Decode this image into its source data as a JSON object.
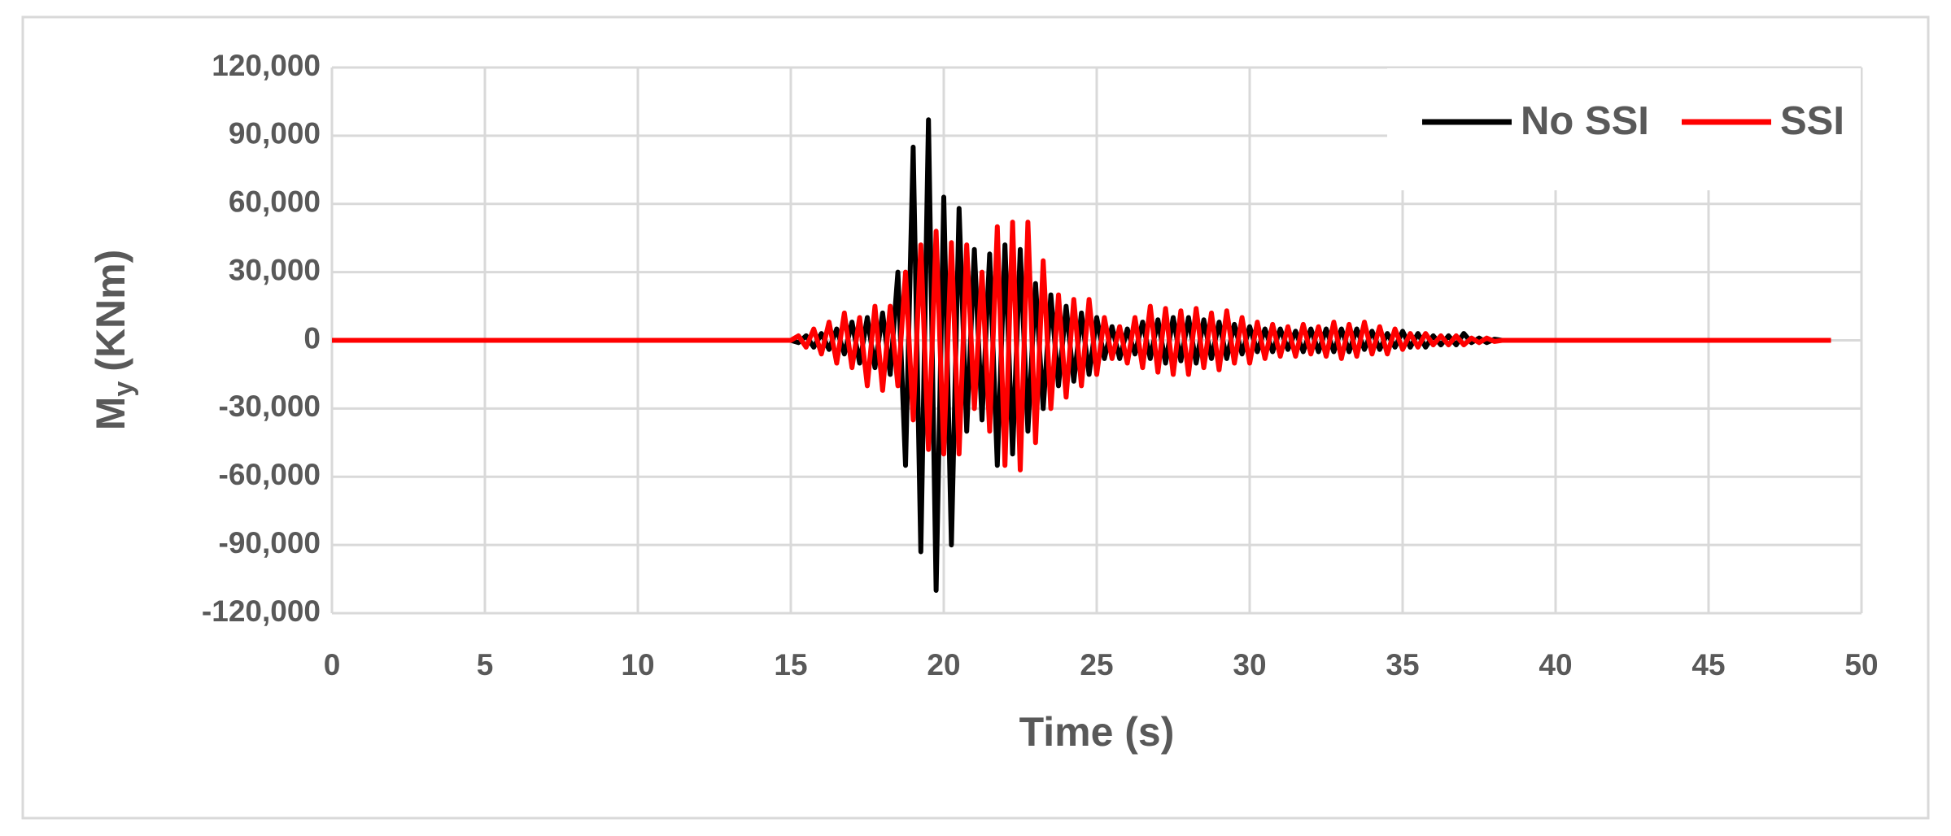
{
  "chart_data": {
    "type": "line",
    "x_label": "Time (s)",
    "y_label_parts": [
      "M",
      "y",
      "(KNm)"
    ],
    "x": [
      0,
      15,
      15.25,
      15.5,
      15.75,
      16,
      16.25,
      16.5,
      16.75,
      17,
      17.25,
      17.5,
      17.75,
      18,
      18.25,
      18.5,
      18.75,
      19,
      19.25,
      19.5,
      19.75,
      20,
      20.25,
      20.5,
      20.75,
      21,
      21.25,
      21.5,
      21.75,
      22,
      22.25,
      22.5,
      22.75,
      23,
      23.25,
      23.5,
      23.75,
      24,
      24.25,
      24.5,
      24.75,
      25,
      25.25,
      25.5,
      25.75,
      26,
      26.25,
      26.5,
      26.75,
      27,
      27.25,
      27.5,
      27.75,
      28,
      28.25,
      28.5,
      28.75,
      29,
      29.25,
      29.5,
      29.75,
      30,
      30.25,
      30.5,
      30.75,
      31,
      31.25,
      31.5,
      31.75,
      32,
      32.25,
      32.5,
      32.75,
      33,
      33.25,
      33.5,
      33.75,
      34,
      34.25,
      34.5,
      34.75,
      35,
      35.25,
      35.5,
      35.75,
      36,
      36.25,
      36.5,
      36.75,
      37,
      37.25,
      37.5,
      37.75,
      38,
      38.25,
      38.5,
      49
    ],
    "series": [
      {
        "name": "No SSI",
        "color": "#000000",
        "values": [
          0,
          0,
          -1000,
          2000,
          -3000,
          3000,
          -4000,
          5000,
          -6000,
          8000,
          -10000,
          10000,
          -12000,
          12000,
          -15000,
          30000,
          -55000,
          85000,
          -93000,
          97000,
          -110000,
          63000,
          -90000,
          58000,
          -40000,
          40000,
          -35000,
          38000,
          -55000,
          42000,
          -50000,
          40000,
          -40000,
          25000,
          -30000,
          20000,
          -20000,
          15000,
          -18000,
          12000,
          -15000,
          10000,
          -8000,
          6000,
          -8000,
          5000,
          -6000,
          8000,
          -8000,
          9000,
          -10000,
          10000,
          -9000,
          10000,
          -10000,
          9000,
          -8000,
          8000,
          -8000,
          7000,
          -6000,
          6000,
          -5000,
          5000,
          -5000,
          5000,
          -4000,
          4000,
          -5000,
          5000,
          -5000,
          5000,
          -5000,
          5000,
          -5000,
          5000,
          -4000,
          4000,
          -4000,
          3000,
          -3000,
          4000,
          -3000,
          3000,
          -3000,
          2000,
          -2000,
          2000,
          -2000,
          3000,
          -1000,
          1000,
          -1000,
          500,
          0,
          0,
          0
        ]
      },
      {
        "name": "SSI",
        "color": "#ff0000",
        "values": [
          0,
          0,
          2000,
          -3000,
          5000,
          -6000,
          8000,
          -10000,
          12000,
          -12000,
          10000,
          -20000,
          15000,
          -22000,
          15000,
          -20000,
          30000,
          -35000,
          42000,
          -48000,
          48000,
          -50000,
          43000,
          -50000,
          42000,
          -30000,
          30000,
          -40000,
          50000,
          -55000,
          52000,
          -57000,
          52000,
          -45000,
          35000,
          -30000,
          20000,
          -25000,
          18000,
          -20000,
          18000,
          -15000,
          10000,
          -8000,
          6000,
          -10000,
          10000,
          -12000,
          15000,
          -14000,
          14000,
          -15000,
          13000,
          -15000,
          14000,
          -12000,
          12000,
          -13000,
          13000,
          -10000,
          10000,
          -10000,
          8000,
          -8000,
          7000,
          -7000,
          6000,
          -7000,
          7000,
          -6000,
          6000,
          -7000,
          8000,
          -8000,
          7000,
          -7000,
          8000,
          -6000,
          6000,
          -6000,
          5000,
          -4000,
          3000,
          -3000,
          3000,
          -2000,
          2000,
          -2000,
          2000,
          -2000,
          1000,
          -1000,
          1000,
          -500,
          0,
          0,
          0
        ]
      }
    ],
    "xlim": [
      0,
      50
    ],
    "xticks": [
      0,
      5,
      10,
      15,
      20,
      25,
      30,
      35,
      40,
      45,
      50
    ],
    "ylim": [
      -120000,
      120000
    ],
    "yticks": [
      {
        "value": -120000,
        "label": "-120,000"
      },
      {
        "value": -90000,
        "label": "-90,000"
      },
      {
        "value": -60000,
        "label": "-60,000"
      },
      {
        "value": -30000,
        "label": "-30,000"
      },
      0,
      {
        "value": 30000,
        "label": "30,000"
      },
      {
        "value": 60000,
        "label": "60,000"
      },
      {
        "value": 90000,
        "label": "90,000"
      },
      {
        "value": 120000,
        "label": "120,000"
      }
    ],
    "grid": true,
    "legend": "top-right"
  }
}
